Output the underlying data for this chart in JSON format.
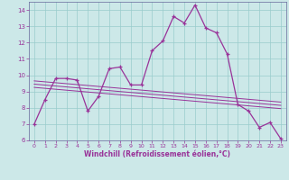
{
  "xlabel": "Windchill (Refroidissement éolien,°C)",
  "background_color": "#cce8e8",
  "grid_color": "#99cccc",
  "line_color": "#993399",
  "xlim": [
    -0.5,
    23.5
  ],
  "ylim": [
    6,
    14.5
  ],
  "xticks": [
    0,
    1,
    2,
    3,
    4,
    5,
    6,
    7,
    8,
    9,
    10,
    11,
    12,
    13,
    14,
    15,
    16,
    17,
    18,
    19,
    20,
    21,
    22,
    23
  ],
  "yticks": [
    6,
    7,
    8,
    9,
    10,
    11,
    12,
    13,
    14
  ],
  "series": [
    [
      0,
      7.0
    ],
    [
      1,
      8.5
    ],
    [
      2,
      9.8
    ],
    [
      3,
      9.8
    ],
    [
      4,
      9.7
    ],
    [
      5,
      7.8
    ],
    [
      6,
      8.7
    ],
    [
      7,
      10.4
    ],
    [
      8,
      10.5
    ],
    [
      9,
      9.4
    ],
    [
      10,
      9.4
    ],
    [
      11,
      11.5
    ],
    [
      12,
      12.1
    ],
    [
      13,
      13.6
    ],
    [
      14,
      13.2
    ],
    [
      15,
      14.3
    ],
    [
      16,
      12.9
    ],
    [
      17,
      12.6
    ],
    [
      18,
      11.3
    ],
    [
      19,
      8.2
    ],
    [
      20,
      7.8
    ],
    [
      21,
      6.8
    ],
    [
      22,
      7.1
    ],
    [
      23,
      6.1
    ]
  ],
  "diag_lines": [
    [
      [
        0,
        9.65
      ],
      [
        23,
        8.35
      ]
    ],
    [
      [
        0,
        9.45
      ],
      [
        23,
        8.15
      ]
    ],
    [
      [
        0,
        9.25
      ],
      [
        23,
        7.95
      ]
    ]
  ],
  "xlabel_color": "#993399",
  "tick_color": "#993399",
  "spine_color": "#666699"
}
